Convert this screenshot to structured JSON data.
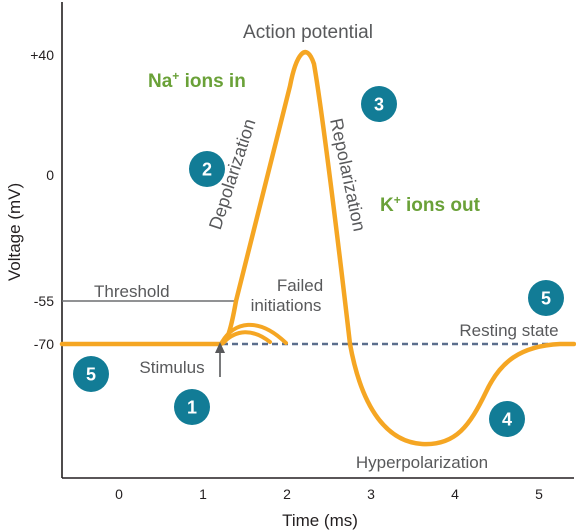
{
  "colors": {
    "curve": "#f5a623",
    "badge": "#127c96",
    "ion_text": "#6aa138",
    "label_text": "#58595b",
    "axis": "#231f20",
    "threshold_line": "#6d6e71",
    "resting_line": "#5b6e8c"
  },
  "title": "Action potential",
  "axes": {
    "x_label": "Time (ms)",
    "y_label": "Voltage (mV)",
    "x_ticks": [
      "0",
      "1",
      "2",
      "3",
      "4",
      "5"
    ],
    "y_ticks": [
      "+40",
      "0",
      "-55",
      "-70"
    ]
  },
  "labels": {
    "threshold": "Threshold",
    "failed_line1": "Failed",
    "failed_line2": "initiations",
    "resting": "Resting state",
    "stimulus": "Stimulus",
    "depolarization": "Depolarization",
    "repolarization": "Repolarization",
    "hyperpolarization": "Hyperpolarization"
  },
  "ions": {
    "na_symbol": "Na",
    "na_charge": "+",
    "na_rest": " ions in",
    "k_symbol": "K",
    "k_charge": "+",
    "k_rest": " ions out"
  },
  "steps": [
    "1",
    "2",
    "3",
    "4",
    "5",
    "5"
  ]
}
